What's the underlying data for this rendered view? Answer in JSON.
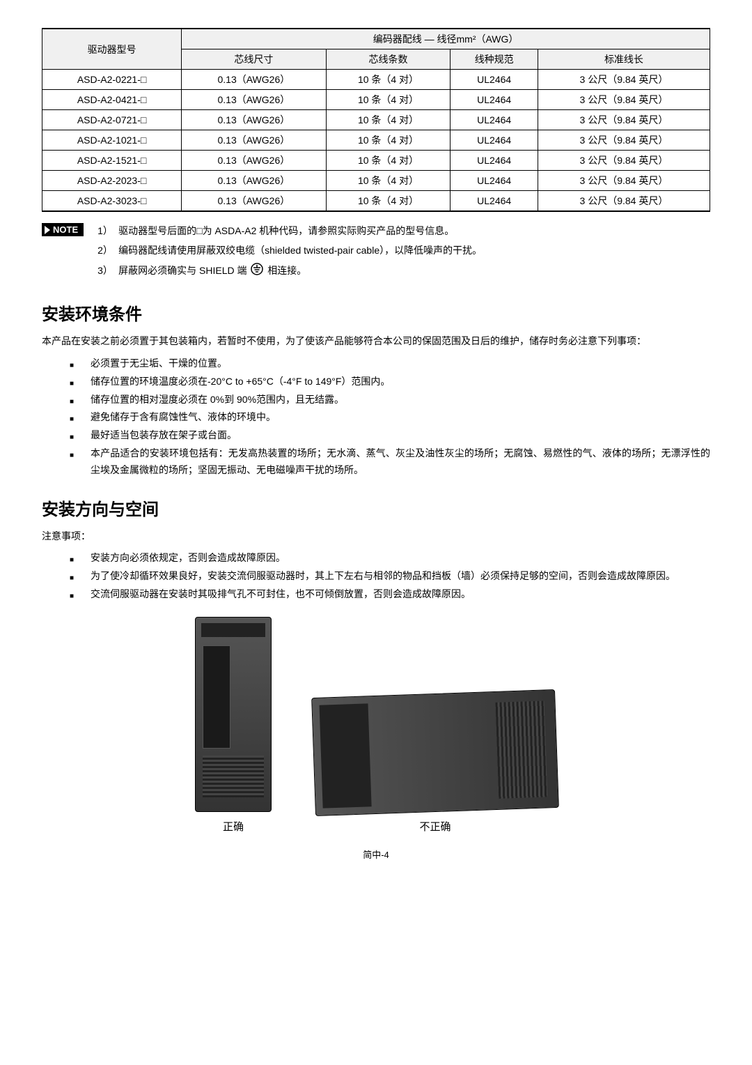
{
  "table": {
    "header_model": "驱动器型号",
    "header_group": "编码器配线 — 线径mm²（AWG）",
    "col1": "芯线尺寸",
    "col2": "芯线条数",
    "col3": "线种规范",
    "col4": "标准线长",
    "rows": [
      {
        "model": "ASD-A2-0221-□",
        "size": "0.13（AWG26）",
        "count": "10 条（4 对）",
        "spec": "UL2464",
        "len": "3 公尺（9.84 英尺）"
      },
      {
        "model": "ASD-A2-0421-□",
        "size": "0.13（AWG26）",
        "count": "10 条（4 对）",
        "spec": "UL2464",
        "len": "3 公尺（9.84 英尺）"
      },
      {
        "model": "ASD-A2-0721-□",
        "size": "0.13（AWG26）",
        "count": "10 条（4 对）",
        "spec": "UL2464",
        "len": "3 公尺（9.84 英尺）"
      },
      {
        "model": "ASD-A2-1021-□",
        "size": "0.13（AWG26）",
        "count": "10 条（4 对）",
        "spec": "UL2464",
        "len": "3 公尺（9.84 英尺）"
      },
      {
        "model": "ASD-A2-1521-□",
        "size": "0.13（AWG26）",
        "count": "10 条（4 对）",
        "spec": "UL2464",
        "len": "3 公尺（9.84 英尺）"
      },
      {
        "model": "ASD-A2-2023-□",
        "size": "0.13（AWG26）",
        "count": "10 条（4 对）",
        "spec": "UL2464",
        "len": "3 公尺（9.84 英尺）"
      },
      {
        "model": "ASD-A2-3023-□",
        "size": "0.13（AWG26）",
        "count": "10 条（4 对）",
        "spec": "UL2464",
        "len": "3 公尺（9.84 英尺）"
      }
    ]
  },
  "note_label": "NOTE",
  "notes": [
    {
      "num": "1）",
      "text": "驱动器型号后面的□为 ASDA-A2 机种代码，请参照实际购买产品的型号信息。"
    },
    {
      "num": "2）",
      "text": "编码器配线请使用屏蔽双绞电缆（shielded twisted-pair cable），以降低噪声的干扰。"
    },
    {
      "num": "3）",
      "text_before": "屏蔽网必须确实与 SHIELD 端",
      "text_after": "相连接。"
    }
  ],
  "section1": {
    "title": "安装环境条件",
    "para": "本产品在安装之前必须置于其包装箱内，若暂时不使用，为了使该产品能够符合本公司的保固范围及日后的维护，储存时务必注意下列事项：",
    "bullets": [
      "必须置于无尘垢、干燥的位置。",
      "储存位置的环境温度必须在-20°C to +65°C（-4°F to 149°F）范围内。",
      "储存位置的相对湿度必须在 0%到 90%范围内，且无结露。",
      "避免储存于含有腐蚀性气、液体的环境中。",
      "最好适当包装存放在架子或台面。",
      "本产品适合的安装环境包括有：无发高热装置的场所；无水滴、蒸气、灰尘及油性灰尘的场所；无腐蚀、易燃性的气、液体的场所；无漂浮性的尘埃及金属微粒的场所；坚固无振动、无电磁噪声干扰的场所。"
    ]
  },
  "section2": {
    "title": "安装方向与空间",
    "para": "注意事项：",
    "bullets": [
      "安装方向必须依规定，否则会造成故障原因。",
      "为了使冷却循环效果良好，安装交流伺服驱动器时，其上下左右与相邻的物品和挡板（墙）必须保持足够的空间，否则会造成故障原因。",
      "交流伺服驱动器在安装时其吸排气孔不可封住，也不可倾倒放置，否则会造成故障原因。"
    ]
  },
  "images": {
    "correct": "正确",
    "incorrect": "不正确"
  },
  "footer": "简中-4"
}
